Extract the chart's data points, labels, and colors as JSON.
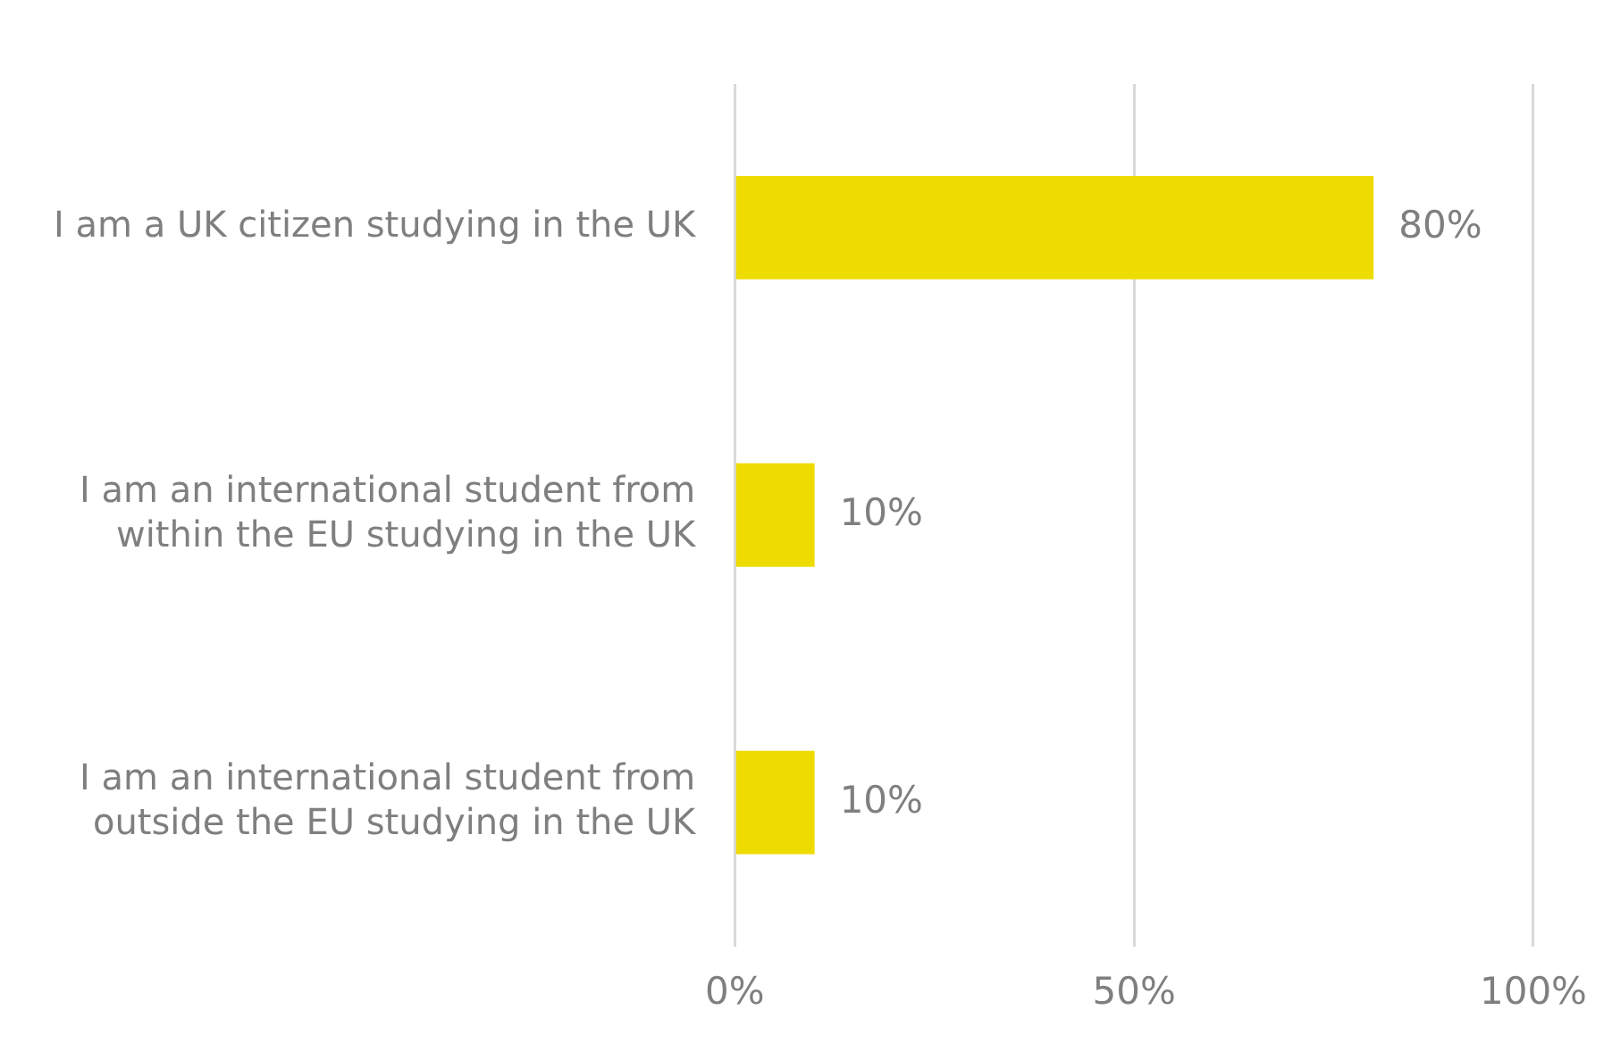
{
  "chart_data": {
    "type": "bar",
    "orientation": "horizontal",
    "categories": [
      "I am a UK citizen studying in the UK",
      "I am an international student from within the EU studying in the UK",
      "I am an international student from outside the EU studying in the UK"
    ],
    "values": [
      80,
      10,
      10
    ],
    "color": "#eedc00",
    "value_labels": [
      "80%",
      "10%",
      "10%"
    ],
    "xlim": [
      0,
      100
    ],
    "xticks": [
      {
        "value": 0,
        "label": "0%"
      },
      {
        "value": 50,
        "label": "50%"
      },
      {
        "value": 100,
        "label": "100%"
      }
    ],
    "grid": "x",
    "legend": false
  }
}
